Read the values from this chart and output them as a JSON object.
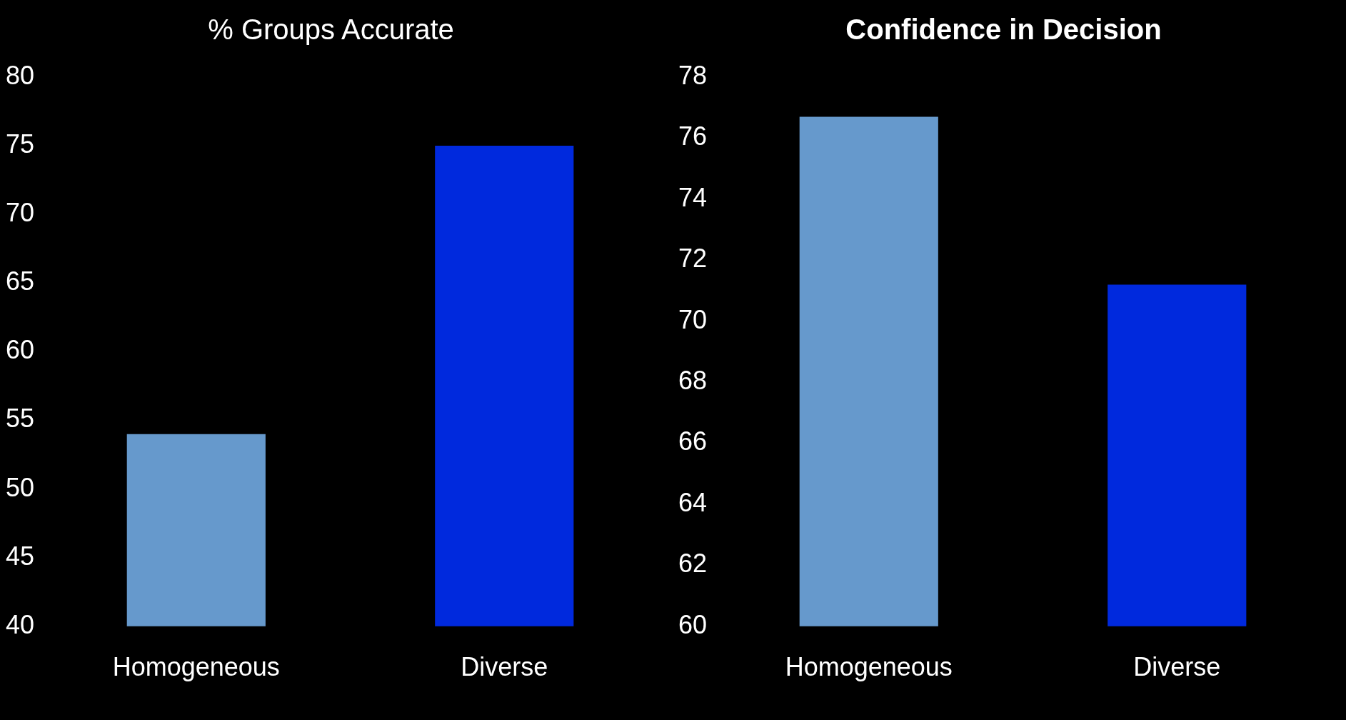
{
  "chart_data": [
    {
      "type": "bar",
      "title": "% Groups Accurate",
      "categories": [
        "Homogeneous",
        "Diverse"
      ],
      "values": [
        54,
        75
      ],
      "colors": [
        "#6699cc",
        "#0029dd"
      ],
      "ylim": [
        40,
        80
      ],
      "yticks": [
        40,
        45,
        50,
        55,
        60,
        65,
        70,
        75,
        80
      ]
    },
    {
      "type": "bar",
      "title": "Confidence in Decision",
      "categories": [
        "Homogeneous",
        "Diverse"
      ],
      "values": [
        76.7,
        71.2
      ],
      "colors": [
        "#6699cc",
        "#0029dd"
      ],
      "ylim": [
        60,
        78
      ],
      "yticks": [
        60,
        62,
        64,
        66,
        68,
        70,
        72,
        74,
        76,
        78
      ]
    }
  ]
}
